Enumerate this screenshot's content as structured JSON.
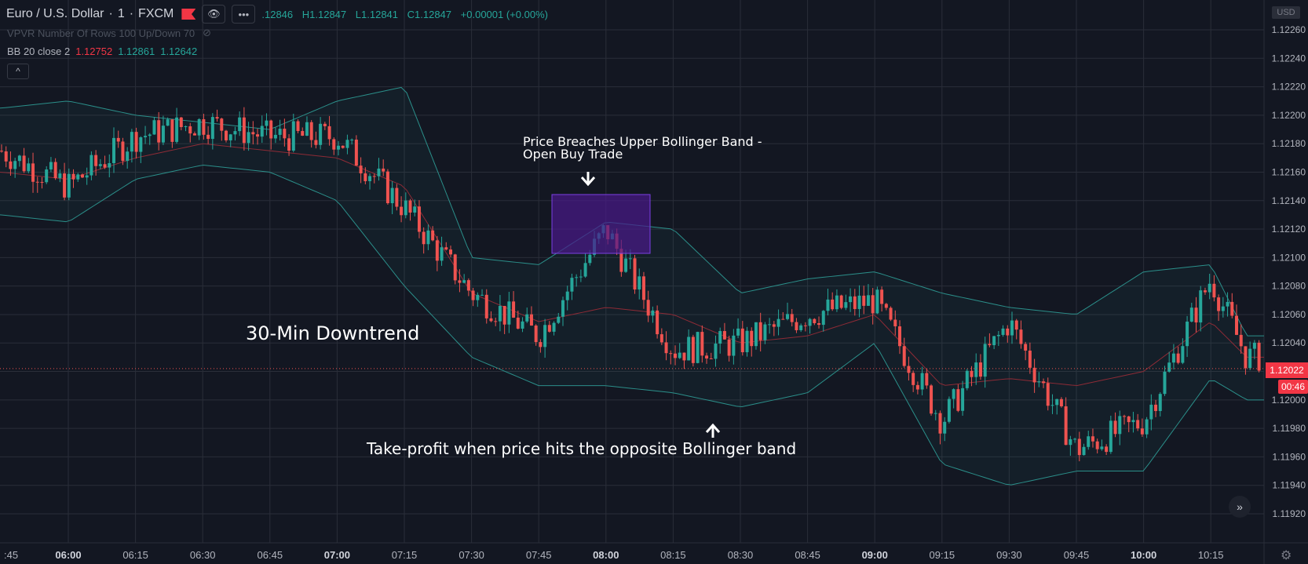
{
  "header": {
    "symbol": "Euro / U.S. Dollar",
    "interval": "1",
    "exchange": "FXCM",
    "more_label": "•••",
    "ohlc": {
      "o": ".12846",
      "h": "H1.12847",
      "l": "L1.12841",
      "c": "C1.12847",
      "chg": "+0.00001 (+0.00%)"
    }
  },
  "indicators": {
    "vpvr": "VPVR Number Of Rows 100 Up/Down 70",
    "bb": {
      "label": "BB 20 close 2",
      "basis": "1.12752",
      "upper": "1.12861",
      "lower": "1.12642"
    }
  },
  "colors": {
    "background": "#131722",
    "grid": "#2a2e39",
    "up": "#26a69a",
    "down": "#ef5350",
    "band": "#2b8f8a",
    "basis": "#8e2b36",
    "box": "#5b1f9e"
  },
  "price_axis": {
    "currency": "USD",
    "labels": [
      "1.12260",
      "1.12240",
      "1.12220",
      "1.12200",
      "1.12180",
      "1.12160",
      "1.12140",
      "1.12120",
      "1.12100",
      "1.12080",
      "1.12060",
      "1.12040",
      "1.12020",
      "1.12000",
      "1.11980",
      "1.11960",
      "1.11940",
      "1.11920"
    ],
    "current_price": "1.12022",
    "countdown": "00:46"
  },
  "time_axis": {
    "labels": [
      ":45",
      "06:00",
      "06:15",
      "06:30",
      "06:45",
      "07:00",
      "07:15",
      "07:30",
      "07:45",
      "08:00",
      "08:15",
      "08:30",
      "08:45",
      "09:00",
      "09:15",
      "09:30",
      "09:45",
      "10:00",
      "10:15"
    ],
    "bold": [
      "06:00",
      "07:00",
      "08:00",
      "09:00",
      "10:00"
    ]
  },
  "annotations": {
    "downtrend": "30-Min Downtrend",
    "breach_line1": "Price Breaches Upper Bollinger Band -",
    "breach_line2": "Open Buy Trade",
    "takeprofit": "Take-profit when price hits the opposite Bollinger band"
  },
  "chart_data": {
    "type": "candlestick",
    "instrument": "Euro / U.S. Dollar",
    "ylim": [
      1.1191,
      1.1228
    ],
    "x": [
      "05:45",
      "06:00",
      "06:15",
      "06:30",
      "06:45",
      "07:00",
      "07:15",
      "07:30",
      "07:45",
      "08:00",
      "08:15",
      "08:30",
      "08:45",
      "09:00",
      "09:15",
      "09:30",
      "09:45",
      "10:00",
      "10:15",
      "10:23"
    ],
    "close": [
      1.12175,
      1.1215,
      1.12185,
      1.12195,
      1.12185,
      1.12185,
      1.12135,
      1.12075,
      1.12045,
      1.1212,
      1.12035,
      1.1204,
      1.1206,
      1.1207,
      1.11985,
      1.12055,
      1.11965,
      1.11985,
      1.12085,
      1.1203
    ],
    "bb_upper": [
      1.12205,
      1.1221,
      1.122,
      1.12195,
      1.1219,
      1.1221,
      1.1222,
      1.121,
      1.12095,
      1.12125,
      1.1212,
      1.12075,
      1.12085,
      1.1209,
      1.12075,
      1.12065,
      1.1206,
      1.1209,
      1.12095,
      1.12045
    ],
    "bb_basis": [
      1.1216,
      1.12155,
      1.1217,
      1.1218,
      1.12175,
      1.1217,
      1.1215,
      1.12075,
      1.12055,
      1.12065,
      1.1206,
      1.1204,
      1.12045,
      1.1206,
      1.1201,
      1.12015,
      1.1201,
      1.1202,
      1.12055,
      1.1203
    ],
    "bb_lower": [
      1.1213,
      1.12125,
      1.12155,
      1.12165,
      1.1216,
      1.1214,
      1.1208,
      1.1203,
      1.1201,
      1.1201,
      1.12005,
      1.11995,
      1.12005,
      1.1204,
      1.11955,
      1.1194,
      1.1195,
      1.1195,
      1.12015,
      1.12
    ]
  }
}
